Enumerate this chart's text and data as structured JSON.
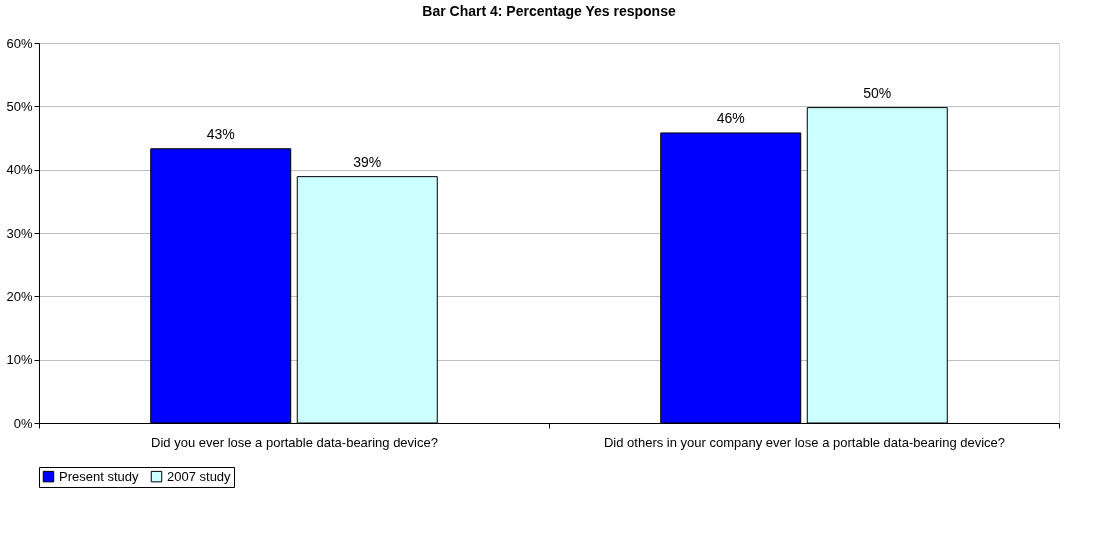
{
  "chart_data": {
    "type": "bar",
    "title": "Bar Chart 4: Percentage Yes response",
    "categories": [
      "Did you ever lose a portable data-bearing device?",
      "Did others in your company ever lose a portable data-bearing device?"
    ],
    "series": [
      {
        "name": "Present study",
        "color": "#0000ff",
        "values": [
          43.3,
          45.8
        ],
        "value_labels": [
          "43%",
          "46%"
        ]
      },
      {
        "name": "2007 study",
        "color": "#ccffff",
        "values": [
          38.9,
          49.8
        ],
        "value_labels": [
          "39%",
          "50%"
        ]
      }
    ],
    "ylim": [
      0,
      60
    ],
    "yticks": [
      {
        "value": 0,
        "label": "0%"
      },
      {
        "value": 10,
        "label": "10%"
      },
      {
        "value": 20,
        "label": "20%"
      },
      {
        "value": 30,
        "label": "30%"
      },
      {
        "value": 40,
        "label": "40%"
      },
      {
        "value": 50,
        "label": "50%"
      },
      {
        "value": 60,
        "label": "60%"
      }
    ],
    "grid": "y",
    "legend": "bottom"
  }
}
